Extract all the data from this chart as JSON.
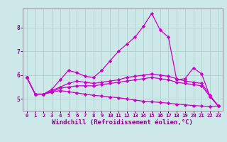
{
  "xlabel": "Windchill (Refroidissement éolien,°C)",
  "background_color": "#cce8e8",
  "line_color": "#cc00cc",
  "grid_color": "#aacccc",
  "x": [
    0,
    1,
    2,
    3,
    4,
    5,
    6,
    7,
    8,
    9,
    10,
    11,
    12,
    13,
    14,
    15,
    16,
    17,
    18,
    19,
    20,
    21,
    22,
    23
  ],
  "lines": [
    [
      5.9,
      5.2,
      5.2,
      5.4,
      5.8,
      6.2,
      6.1,
      5.95,
      5.9,
      6.2,
      6.6,
      7.0,
      7.3,
      7.6,
      8.05,
      8.6,
      7.9,
      7.6,
      5.8,
      5.85,
      6.3,
      6.05,
      5.1,
      4.7
    ],
    [
      5.9,
      5.2,
      5.2,
      5.35,
      5.5,
      5.65,
      5.75,
      5.7,
      5.65,
      5.7,
      5.75,
      5.8,
      5.9,
      5.95,
      6.0,
      6.05,
      6.0,
      5.95,
      5.85,
      5.75,
      5.7,
      5.65,
      5.15,
      4.7
    ],
    [
      5.9,
      5.2,
      5.2,
      5.3,
      5.45,
      5.5,
      5.55,
      5.55,
      5.55,
      5.6,
      5.65,
      5.7,
      5.75,
      5.8,
      5.85,
      5.9,
      5.85,
      5.8,
      5.7,
      5.65,
      5.6,
      5.55,
      5.1,
      4.7
    ],
    [
      5.9,
      5.2,
      5.2,
      5.28,
      5.35,
      5.3,
      5.25,
      5.2,
      5.15,
      5.12,
      5.08,
      5.05,
      5.0,
      4.95,
      4.9,
      4.88,
      4.85,
      4.82,
      4.78,
      4.75,
      4.72,
      4.7,
      4.68,
      4.7
    ]
  ],
  "ylim": [
    4.5,
    8.8
  ],
  "xlim": [
    -0.5,
    23.5
  ],
  "yticks": [
    5,
    6,
    7,
    8
  ],
  "xticks": [
    0,
    1,
    2,
    3,
    4,
    5,
    6,
    7,
    8,
    9,
    10,
    11,
    12,
    13,
    14,
    15,
    16,
    17,
    18,
    19,
    20,
    21,
    22,
    23
  ],
  "marker": "D",
  "markersize": 2.2,
  "linewidth": 0.9,
  "tick_fontsize": 5.2,
  "xlabel_fontsize": 6.5
}
